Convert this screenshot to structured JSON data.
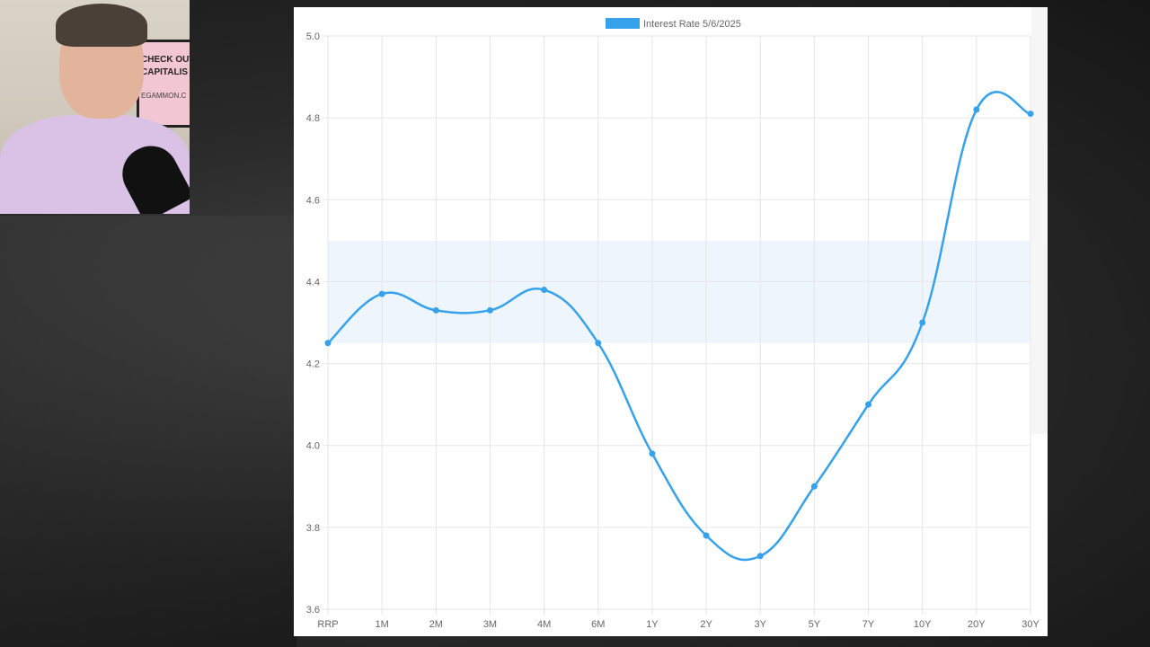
{
  "webcam": {
    "sign_line1": "CHECK OUT",
    "sign_line2": "CAPITALIS",
    "sign_line3": "EGAMMON.C"
  },
  "colors": {
    "series": "#36a2eb",
    "band": "#eef5fd",
    "grid": "#e6e6e6"
  },
  "chart_data": {
    "type": "line",
    "legend": "Interest Rate 5/6/2025",
    "legend_position": "top",
    "categories": [
      "RRP",
      "1M",
      "2M",
      "3M",
      "4M",
      "6M",
      "1Y",
      "2Y",
      "3Y",
      "5Y",
      "7Y",
      "10Y",
      "20Y",
      "30Y"
    ],
    "series": [
      {
        "name": "Interest Rate 5/6/2025",
        "values": [
          4.25,
          4.37,
          4.33,
          4.33,
          4.38,
          4.25,
          3.98,
          3.78,
          3.73,
          3.9,
          4.1,
          4.3,
          4.82,
          4.81
        ]
      }
    ],
    "ylim": [
      3.6,
      5.0
    ],
    "yticks": [
      "5.0",
      "4.8",
      "4.6",
      "4.4",
      "4.2",
      "4.0",
      "3.8",
      "3.6"
    ],
    "band": [
      4.25,
      4.5
    ],
    "grid": true,
    "curve": "smooth"
  }
}
